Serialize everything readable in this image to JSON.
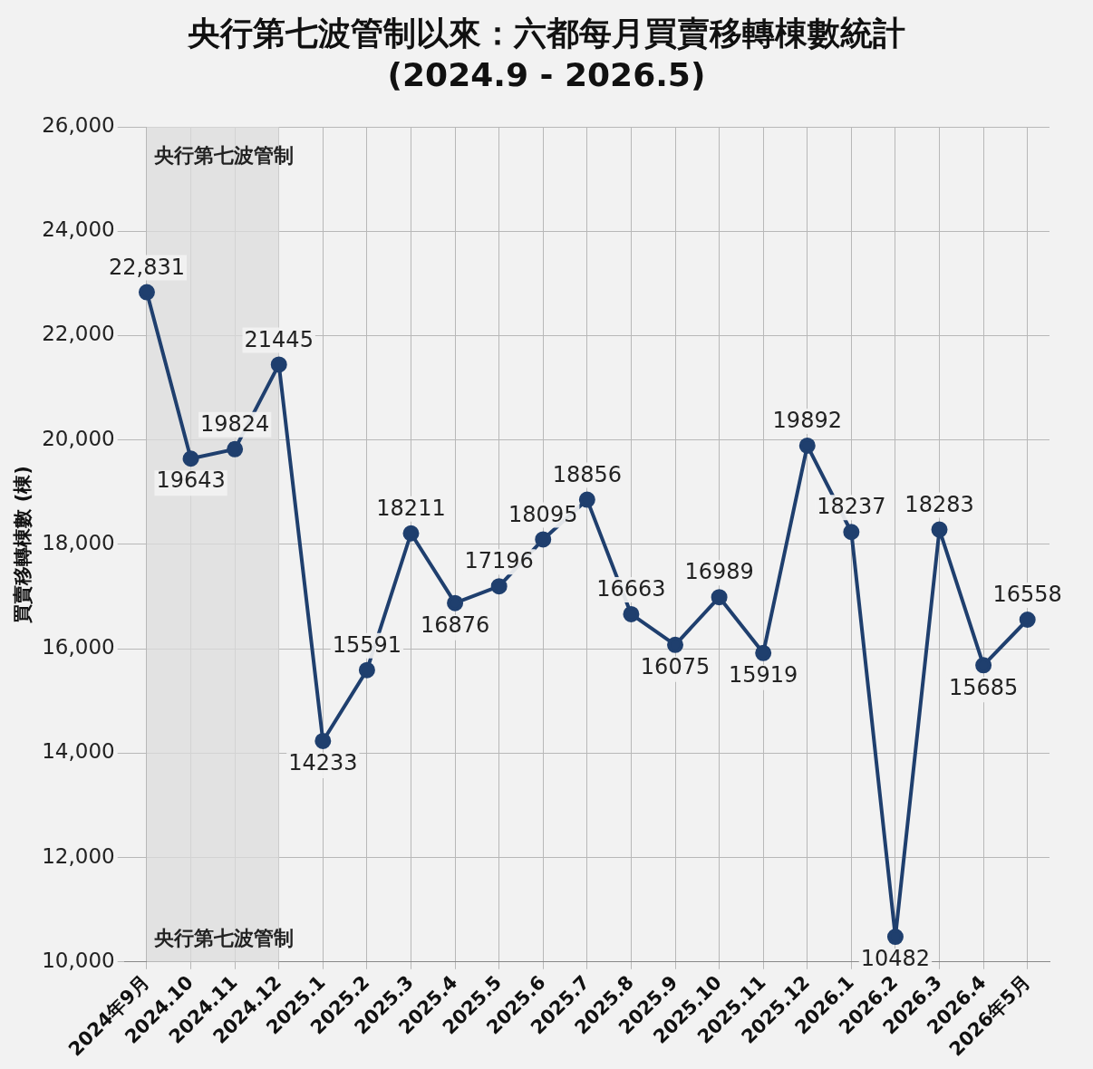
{
  "chart_data": {
    "type": "line",
    "title": "央行第七波管制以來：六都每月買賣移轉棟數統計\n(2024.9 - 2026.5)",
    "ylabel": "買賣移轉棟數 (棟)",
    "categories": [
      "2024年9月",
      "2024.10",
      "2024.11",
      "2024.12",
      "2025.1",
      "2025.2",
      "2025.3",
      "2025.4",
      "2025.5",
      "2025.6",
      "2025.7",
      "2025.8",
      "2025.9",
      "2025.10",
      "2025.11",
      "2025.12",
      "2026.1",
      "2026.2",
      "2026.3",
      "2026.4",
      "2026年5月"
    ],
    "series": [
      {
        "color": "#1f3f6e",
        "values": [
          22831,
          19643,
          19824,
          21445,
          14233,
          15591,
          18211,
          16876,
          17196,
          18095,
          18856,
          16663,
          16075,
          16989,
          15919,
          19892,
          18237,
          10482,
          18283,
          15685,
          16558
        ],
        "value_labels": [
          "22,831",
          "19643",
          "19824",
          "21445",
          "14233",
          "15591",
          "18211",
          "16876",
          "17196",
          "18095",
          "18856",
          "16663",
          "16075",
          "16989",
          "15919",
          "19892",
          "18237",
          "10482",
          "18283",
          "15685",
          "16558"
        ]
      }
    ],
    "ylim": [
      10000,
      26000
    ],
    "yticks": [
      {
        "value": 10000,
        "label": "10,000"
      },
      {
        "value": 12000,
        "label": "12,000"
      },
      {
        "value": 14000,
        "label": "14,000"
      },
      {
        "value": 16000,
        "label": "16,000"
      },
      {
        "value": 18000,
        "label": "18,000"
      },
      {
        "value": 20000,
        "label": "20,000"
      },
      {
        "value": 22000,
        "label": "22,000"
      },
      {
        "value": 24000,
        "label": "24,000"
      },
      {
        "value": 26000,
        "label": "26,000"
      }
    ],
    "bands": [
      {
        "axis": "x",
        "from": "2024年9月",
        "to": "2024.12",
        "label": "央行第七波管制",
        "color": "#dcdcdc"
      }
    ],
    "annotations": [
      "央行第七波管制"
    ],
    "grid": true,
    "legend": false,
    "marker": "circle",
    "line_style": "solid"
  }
}
